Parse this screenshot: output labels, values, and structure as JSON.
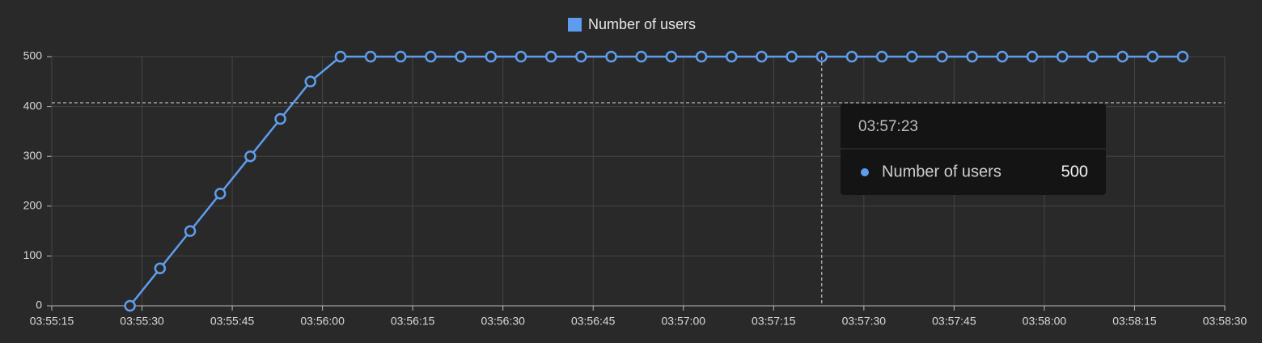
{
  "chart_data": {
    "type": "line",
    "x": [
      "03:55:28",
      "03:55:33",
      "03:55:38",
      "03:55:43",
      "03:55:48",
      "03:55:53",
      "03:55:58",
      "03:56:03",
      "03:56:08",
      "03:56:13",
      "03:56:18",
      "03:56:23",
      "03:56:28",
      "03:56:33",
      "03:56:38",
      "03:56:43",
      "03:56:48",
      "03:56:53",
      "03:56:58",
      "03:57:03",
      "03:57:08",
      "03:57:13",
      "03:57:18",
      "03:57:23",
      "03:57:28",
      "03:57:33",
      "03:57:38",
      "03:57:43",
      "03:57:48",
      "03:57:53",
      "03:57:58",
      "03:58:03",
      "03:58:08",
      "03:58:13",
      "03:58:18",
      "03:58:23"
    ],
    "series": [
      {
        "name": "Number of users",
        "color": "#5e9ded",
        "values": [
          0,
          75,
          150,
          225,
          300,
          375,
          450,
          500,
          500,
          500,
          500,
          500,
          500,
          500,
          500,
          500,
          500,
          500,
          500,
          500,
          500,
          500,
          500,
          500,
          500,
          500,
          500,
          500,
          500,
          500,
          500,
          500,
          500,
          500,
          500,
          500
        ]
      }
    ],
    "xlim": [
      "03:55:15",
      "03:58:30"
    ],
    "xticks": [
      "03:55:15",
      "03:55:30",
      "03:55:45",
      "03:56:00",
      "03:56:15",
      "03:56:30",
      "03:56:45",
      "03:57:00",
      "03:57:15",
      "03:57:30",
      "03:57:45",
      "03:58:00",
      "03:58:15",
      "03:58:30"
    ],
    "ylim": [
      0,
      500
    ],
    "yticks": [
      0,
      100,
      200,
      300,
      400,
      500
    ],
    "grid": true,
    "legend": "top",
    "tooltip": {
      "x": "03:57:23",
      "series": "Number of users",
      "value": 500
    }
  }
}
